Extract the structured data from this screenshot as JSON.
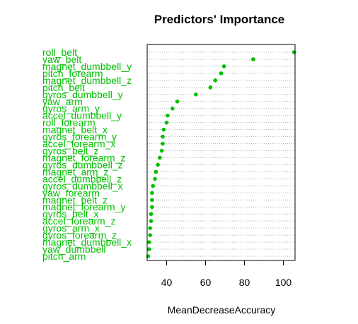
{
  "chart_data": {
    "type": "scatter",
    "subtype": "dotchart",
    "title": "Predictors' Importance",
    "xlabel": "MeanDecreaseAccuracy",
    "ylabel": "",
    "xlim": [
      30,
      106
    ],
    "xticks": [
      40,
      60,
      80,
      100
    ],
    "grid": true,
    "legend": "none",
    "colors": {
      "point": "#00c000",
      "label": "#00c000",
      "grid": "#b0b0b0",
      "axis": "#000000"
    },
    "categories": [
      "roll_belt",
      "yaw_belt",
      "magnet_dumbbell_y",
      "pitch_forearm",
      "magnet_dumbbell_z",
      "pitch_belt",
      "gyros_dumbbell_y",
      "yaw_arm",
      "gyros_arm_y",
      "accel_dumbbell_y",
      "roll_forearm",
      "magnet_belt_x",
      "gyros_forearm_y",
      "accel_forearm_x",
      "gyros_belt_z",
      "magnet_forearm_z",
      "gyros_dumbbell_z",
      "magnet_arm_z",
      "accel_dumbbell_z",
      "gyros_dumbbell_x",
      "yaw_forearm",
      "magnet_belt_z",
      "magnet_forearm_y",
      "gyros_belt_x",
      "accel_forearm_z",
      "gyros_arm_x",
      "gyros_forearm_z",
      "magnet_dumbbell_x",
      "yaw_dumbbell",
      "pitch_arm"
    ],
    "values": [
      105.5,
      84.5,
      69.5,
      68.0,
      65.0,
      62.5,
      55.0,
      45.5,
      43.0,
      40.5,
      40.0,
      38.5,
      38.0,
      38.0,
      37.5,
      36.5,
      35.5,
      34.5,
      34.0,
      33.0,
      32.5,
      32.5,
      32.5,
      32.0,
      32.0,
      31.5,
      31.5,
      31.0,
      31.0,
      30.5
    ]
  }
}
